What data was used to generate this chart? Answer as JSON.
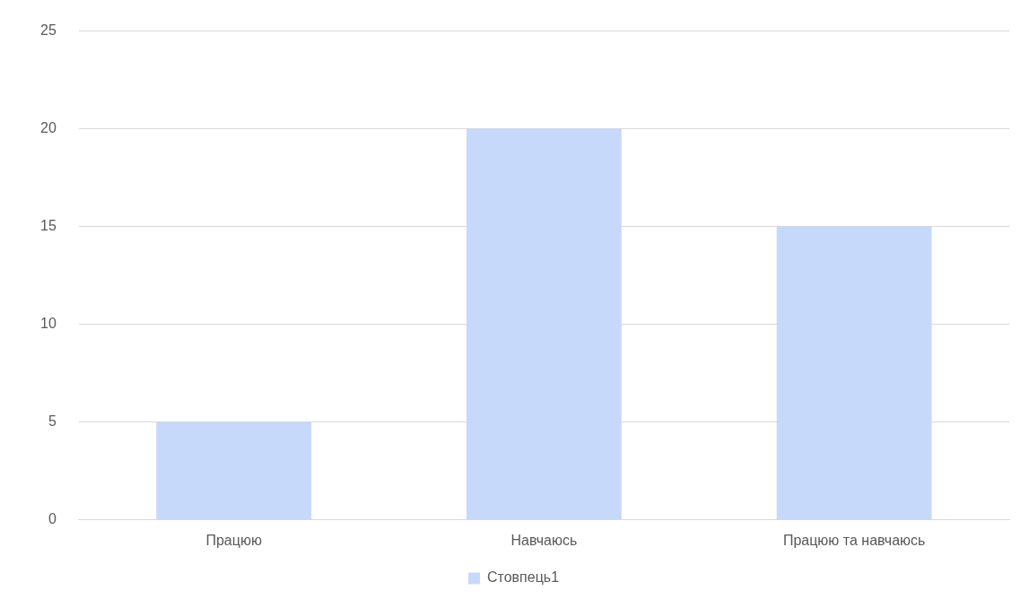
{
  "chart_data": {
    "type": "bar",
    "categories": [
      "Працюю",
      "Навчаюсь",
      "Працюю та навчаюсь"
    ],
    "series": [
      {
        "name": "Стовпець1",
        "color": "#c6d9fa",
        "values": [
          5,
          20,
          15
        ]
      }
    ],
    "ylim": [
      0,
      25
    ],
    "yticks": [
      0,
      5,
      10,
      15,
      20,
      25
    ],
    "grid": "y",
    "legend": "bottom"
  }
}
